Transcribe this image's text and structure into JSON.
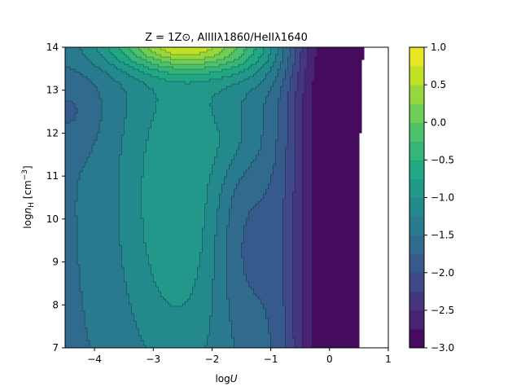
{
  "chart_data": {
    "type": "contour",
    "title": "Z = 1Z⊙, AlIIIλ1860/HeIIλ1640",
    "xlabel": "logU",
    "ylabel": "log n_H [cm^-3]",
    "xlim": [
      -4.5,
      1.0
    ],
    "ylim": [
      7,
      14
    ],
    "x_ticks": [
      "−4",
      "−3",
      "−2",
      "−1",
      "0",
      "1"
    ],
    "x_tick_values": [
      -4,
      -3,
      -2,
      -1,
      0,
      1
    ],
    "y_ticks": [
      "7",
      "8",
      "9",
      "10",
      "11",
      "12",
      "13",
      "14"
    ],
    "y_tick_values": [
      7,
      8,
      9,
      10,
      11,
      12,
      13,
      14
    ],
    "colorbar": {
      "ticks": [
        "−3.0",
        "−2.5",
        "−2.0",
        "−1.5",
        "−1.0",
        "−0.5",
        "0.0",
        "0.5",
        "1.0"
      ],
      "tick_values": [
        -3.0,
        -2.5,
        -2.0,
        -1.5,
        -1.0,
        -0.5,
        0.0,
        0.5,
        1.0
      ],
      "levels_step": 0.25,
      "colormap": "viridis"
    },
    "grid": false,
    "data_extent": {
      "logU_max_at_low_density": 0.55
    },
    "regions": [
      {
        "level": -0.75,
        "description": "central green island near logU -2.5, log nH 10-11.5"
      },
      {
        "level": -3.0,
        "description": "dark purple strip near logU 0.2-0.5"
      },
      {
        "level": 0.25,
        "description": "yellow-green maximum at top-left, log nH ~14, logU -3 to -2"
      },
      {
        "level": -1.75,
        "description": "blue minimum at left edge, log nH ~12.5"
      }
    ]
  },
  "colors": {
    "viridis_stops": [
      "#440154",
      "#482475",
      "#414487",
      "#355f8d",
      "#2a788e",
      "#21918c",
      "#22a884",
      "#44bf70",
      "#7ad151",
      "#bddf26",
      "#fde725"
    ]
  }
}
